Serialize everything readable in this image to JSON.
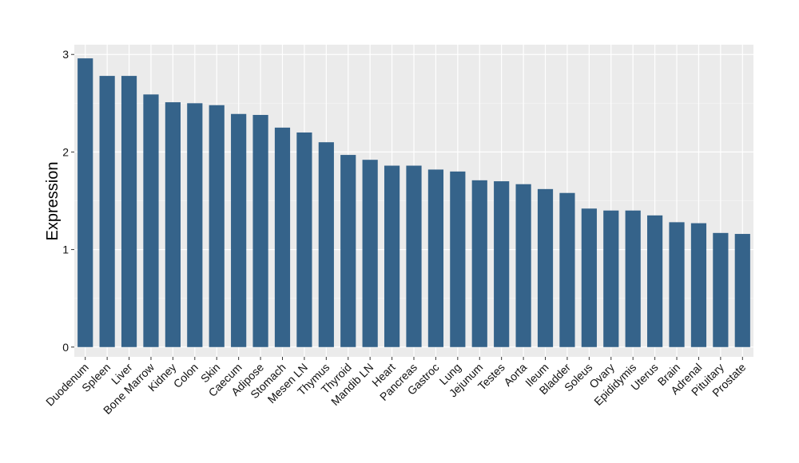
{
  "chart_data": {
    "type": "bar",
    "title": "",
    "xlabel": "",
    "ylabel": "Expression",
    "ylim": [
      -0.1,
      3.1
    ],
    "yticks": [
      0,
      1,
      2,
      3
    ],
    "grid": true,
    "legend": "none",
    "colors": {
      "bar": "#35638a",
      "panel": "#ebebeb",
      "grid_major": "#ffffff",
      "grid_minor": "#f5f5f5",
      "tick": "#333333"
    },
    "categories": [
      "Duodenum",
      "Spleen",
      "Liver",
      "Bone Marrow",
      "Kidney",
      "Colon",
      "Skin",
      "Caecum",
      "Adipose",
      "Stomach",
      "Mesen LN",
      "Thymus",
      "Thyroid",
      "Mandib LN",
      "Heart",
      "Pancreas",
      "Gastroc",
      "Lung",
      "Jejunum",
      "Testes",
      "Aorta",
      "Ileum",
      "Bladder",
      "Soleus",
      "Ovary",
      "Epididymis",
      "Uterus",
      "Brain",
      "Adrenal",
      "Pituitary",
      "Prostate"
    ],
    "values": [
      2.96,
      2.78,
      2.78,
      2.59,
      2.51,
      2.5,
      2.48,
      2.39,
      2.38,
      2.25,
      2.2,
      2.1,
      1.97,
      1.92,
      1.86,
      1.86,
      1.82,
      1.8,
      1.71,
      1.7,
      1.67,
      1.62,
      1.58,
      1.42,
      1.4,
      1.4,
      1.35,
      1.28,
      1.27,
      1.17,
      1.16
    ]
  }
}
